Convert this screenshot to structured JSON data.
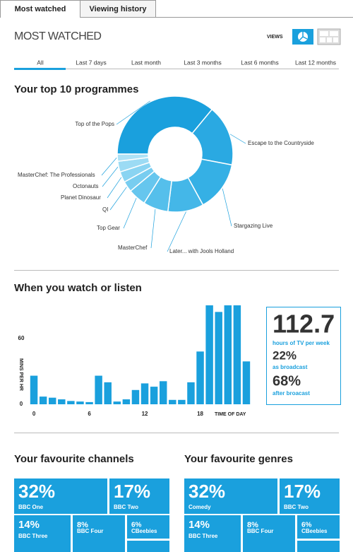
{
  "tabs": [
    "Most watched",
    "Viewing history"
  ],
  "header": {
    "title": "MOST WATCHED",
    "views_label": "VIEWS"
  },
  "filters": [
    "All",
    "Last 7 days",
    "Last month",
    "Last 3 months",
    "Last 6 months",
    "Last 12 months"
  ],
  "stats": {
    "hours": "112.7",
    "hours_label": "hours of TV per week",
    "broadcast": "22%",
    "broadcast_label": "as broadcast",
    "after": "68%",
    "after_label": "after broacast"
  },
  "chart_data": [
    {
      "type": "pie",
      "title": "Your top 10 programmes",
      "donut": true,
      "categories": [
        "Top of the Pops",
        "Escape to the Countryside",
        "Stargazing Live",
        "Later... with Jools Holland",
        "MasterChef",
        "Top Gear",
        "QI",
        "Planet Dinosaur",
        "Octonauts",
        "MasterChef: The Professionals"
      ],
      "values": [
        36,
        17,
        14,
        10,
        7,
        5,
        3,
        3,
        3,
        2
      ],
      "colors": [
        "#1aa0dd",
        "#2aa9e2",
        "#35b0e5",
        "#44b7e8",
        "#55bfeb",
        "#66c6ee",
        "#78cdf0",
        "#8ad4f2",
        "#9cdbf4",
        "#aee2f6"
      ]
    },
    {
      "type": "bar",
      "title": "When you watch or listen",
      "x": [
        0,
        1,
        2,
        3,
        4,
        5,
        6,
        7,
        8,
        9,
        10,
        11,
        12,
        13,
        14,
        15,
        16,
        17,
        18,
        19,
        20,
        21,
        22,
        23
      ],
      "values": [
        26,
        7,
        6,
        4.5,
        3,
        2.5,
        2,
        26,
        20,
        2.5,
        4.5,
        13,
        19,
        16,
        21,
        4,
        4,
        20,
        48,
        90,
        84,
        90,
        90,
        39
      ],
      "xlim": [
        -0.5,
        23.5
      ],
      "xticks": [
        0,
        6,
        12,
        18
      ],
      "ylim": [
        0,
        90
      ],
      "yticks": [
        0,
        60
      ],
      "ylabel": "MINS PER HR",
      "xlabel": "TIME OF DAY",
      "color": "#1aa0dd"
    },
    {
      "type": "treemap",
      "title": "Your favourite channels",
      "categories": [
        "BBC One",
        "BBC Two",
        "BBC Three",
        "BBC Four",
        "CBeebies"
      ],
      "values": [
        32,
        17,
        14,
        8,
        6
      ],
      "value_labels": [
        "32%",
        "17%",
        "14%",
        "8%",
        "6%"
      ],
      "color": "#1aa0dd"
    },
    {
      "type": "treemap",
      "title": "Your favourite genres",
      "categories": [
        "Comedy",
        "BBC Two",
        "BBC Three",
        "BBC Four",
        "CBeebies"
      ],
      "values": [
        32,
        17,
        14,
        8,
        6
      ],
      "value_labels": [
        "32%",
        "17%",
        "14%",
        "8%",
        "6%"
      ],
      "color": "#1aa0dd"
    }
  ]
}
